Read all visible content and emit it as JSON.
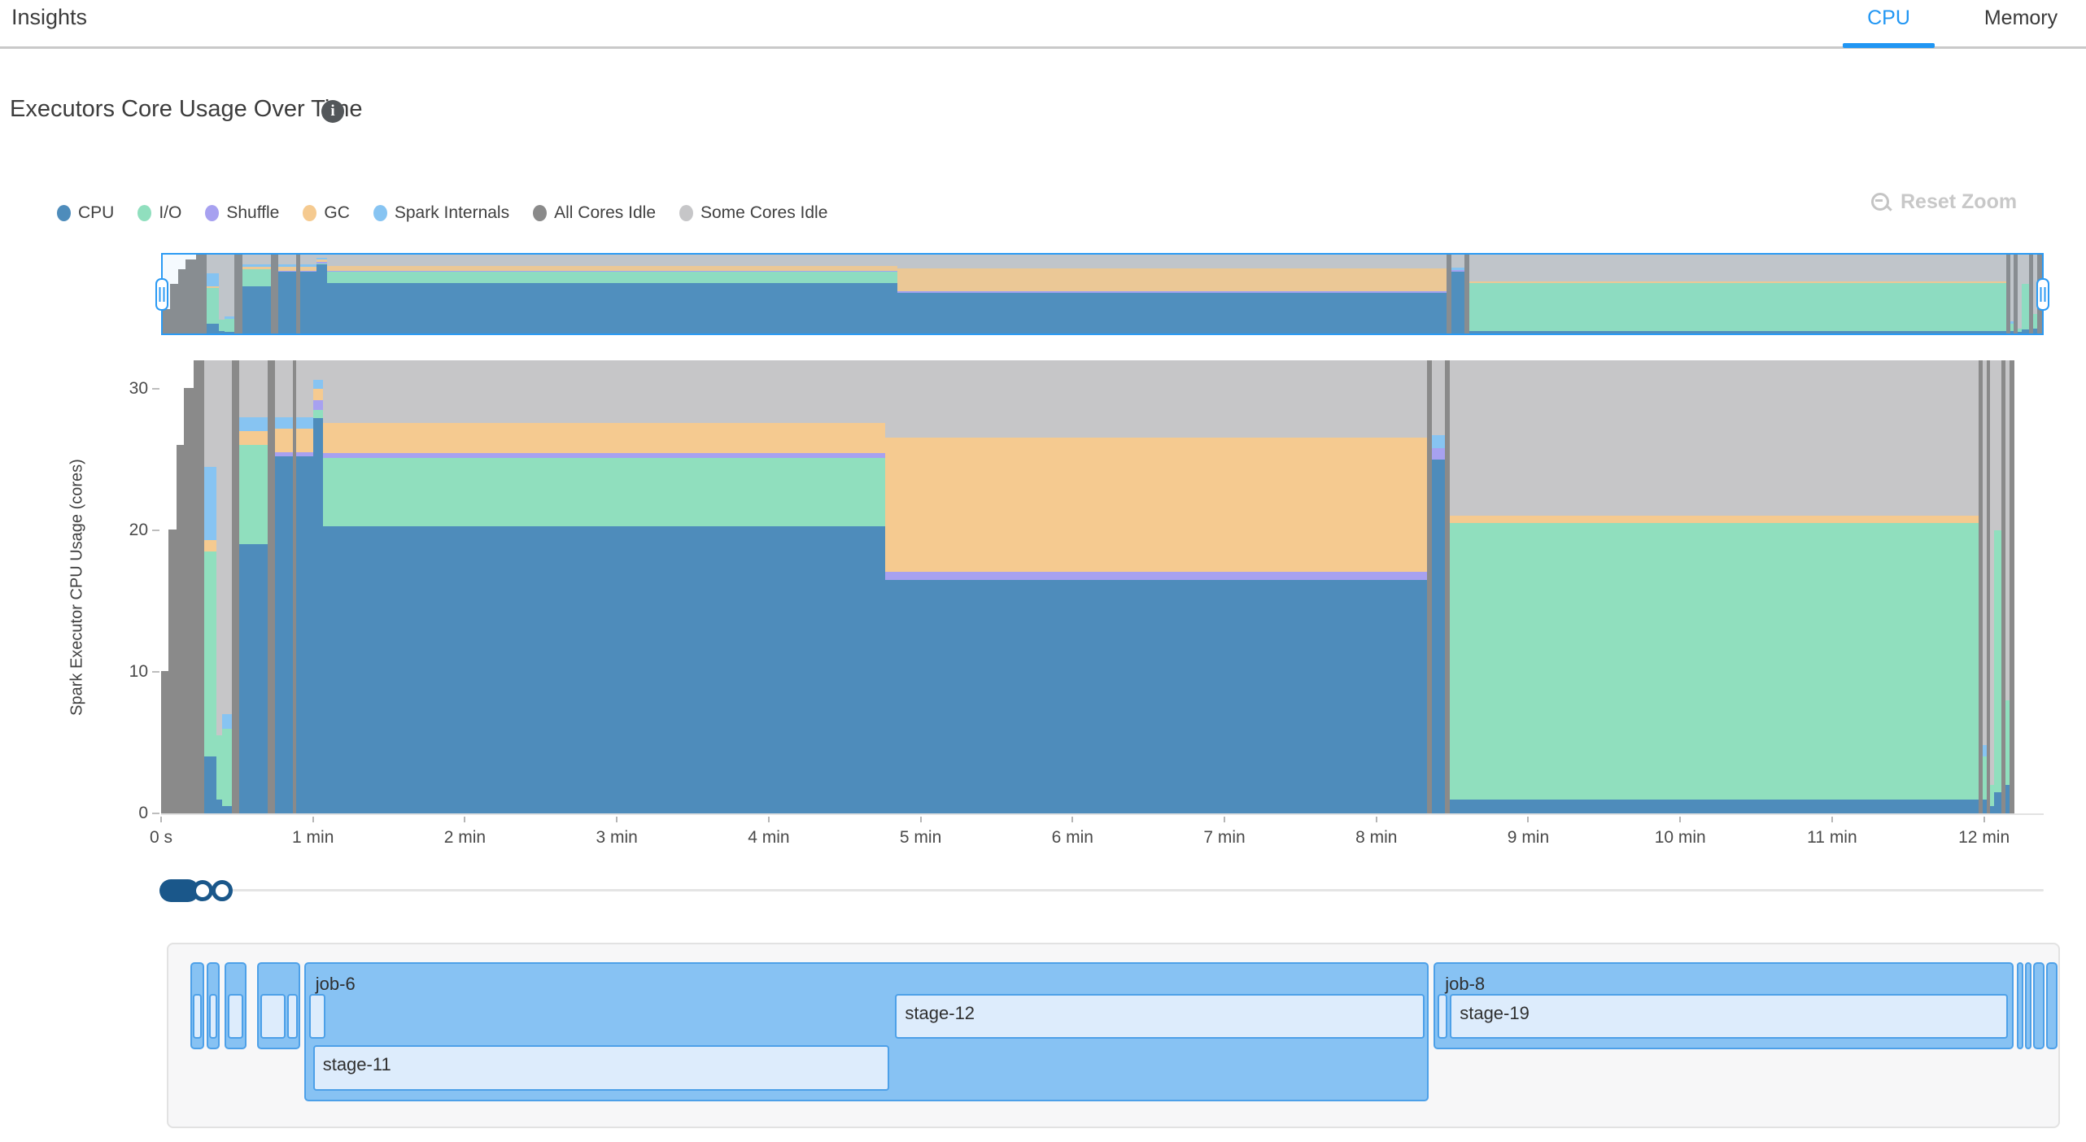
{
  "header": {
    "title": "Insights",
    "tabs": [
      {
        "label": "CPU",
        "active": true
      },
      {
        "label": "Memory",
        "active": false
      }
    ]
  },
  "section": {
    "title": "Executors Core Usage Over Time",
    "info_icon_glyph": "i"
  },
  "toolbar": {
    "reset_zoom_label": "Reset Zoom"
  },
  "ui": {
    "accent_blue": "#2196f3",
    "tab_inactive": "#3a3a3a",
    "divider": "#c9c9c9",
    "reset_zoom_gray": "#c8c8c8",
    "info_icon_bg": "#53575a",
    "slider_blue": "#1a578a",
    "job_fill": "#87c2f3",
    "job_border": "#4da0e8",
    "stage_fill": "#ddecfc",
    "panel_bg": "#f7f7f8",
    "axis_text": "#4a4a4a"
  },
  "chart_data": {
    "type": "area",
    "stacked": true,
    "title": "Executors Core Usage Over Time",
    "xlabel": "",
    "ylabel": "Spark Executor CPU Usage (cores)",
    "ylim": [
      0,
      32
    ],
    "yticks": [
      0,
      10,
      20,
      30
    ],
    "x_total_seconds": 732,
    "grid": false,
    "legend_position": "top-left",
    "xticks": [
      {
        "t": 0,
        "label": "0 s"
      },
      {
        "t": 60,
        "label": "1 min"
      },
      {
        "t": 120,
        "label": "2 min"
      },
      {
        "t": 180,
        "label": "3 min"
      },
      {
        "t": 240,
        "label": "4 min"
      },
      {
        "t": 300,
        "label": "5 min"
      },
      {
        "t": 360,
        "label": "6 min"
      },
      {
        "t": 420,
        "label": "7 min"
      },
      {
        "t": 480,
        "label": "8 min"
      },
      {
        "t": 540,
        "label": "9 min"
      },
      {
        "t": 600,
        "label": "10 min"
      },
      {
        "t": 660,
        "label": "11 min"
      },
      {
        "t": 720,
        "label": "12 min"
      }
    ],
    "series": [
      {
        "key": "cpu",
        "label": "CPU",
        "color": "#4e8cbb"
      },
      {
        "key": "io",
        "label": "I/O",
        "color": "#90dfbe"
      },
      {
        "key": "shuffle",
        "label": "Shuffle",
        "color": "#a7a1f0"
      },
      {
        "key": "gc",
        "label": "GC",
        "color": "#f5ca90"
      },
      {
        "key": "internals",
        "label": "Spark Internals",
        "color": "#87c4f2"
      },
      {
        "key": "all_idle",
        "label": "All Cores Idle",
        "color": "#8a8a8a"
      },
      {
        "key": "some_idle",
        "label": "Some Cores Idle",
        "color": "#c6c6c8"
      }
    ],
    "slices": [
      [
        0,
        3,
        [
          0,
          0,
          0,
          0,
          0,
          10,
          0
        ]
      ],
      [
        3,
        6,
        [
          0,
          0,
          0,
          0,
          0,
          20,
          0
        ]
      ],
      [
        6,
        9,
        [
          0,
          0,
          0,
          0,
          0,
          26,
          0
        ]
      ],
      [
        9,
        13,
        [
          0,
          0,
          0,
          0,
          0,
          30,
          0
        ]
      ],
      [
        13,
        17,
        [
          0,
          0,
          0,
          0,
          0,
          32,
          0
        ]
      ],
      [
        17,
        22,
        [
          4,
          14.5,
          0,
          0.8,
          5.2,
          0,
          7.5
        ]
      ],
      [
        22,
        24,
        [
          1,
          4.5,
          0,
          0,
          0,
          0,
          26.5
        ]
      ],
      [
        24,
        28,
        [
          0.5,
          5.5,
          0,
          0,
          1,
          0,
          25
        ]
      ],
      [
        28,
        31,
        [
          0,
          0,
          0,
          0,
          0,
          32,
          0
        ]
      ],
      [
        31,
        42,
        [
          19,
          7,
          0,
          1,
          1,
          0,
          4
        ]
      ],
      [
        42,
        45,
        [
          0,
          0,
          0,
          0,
          0,
          32,
          0
        ]
      ],
      [
        45,
        52,
        [
          25.2,
          0,
          0.3,
          1.7,
          0.8,
          0,
          4
        ]
      ],
      [
        52,
        53.5,
        [
          0,
          0,
          0,
          0,
          0,
          32,
          0
        ]
      ],
      [
        53.5,
        60,
        [
          25.2,
          0,
          0.3,
          1.7,
          0.8,
          0,
          4
        ]
      ],
      [
        60,
        64,
        [
          27.9,
          0.6,
          0.7,
          0.8,
          0.6,
          0,
          1.4
        ]
      ],
      [
        64,
        286,
        [
          20.3,
          4.8,
          0.35,
          2.1,
          0,
          0,
          4.45
        ]
      ],
      [
        286,
        500,
        [
          16.5,
          0,
          0.55,
          9.5,
          0,
          0,
          5.45
        ]
      ],
      [
        500,
        502,
        [
          0,
          0,
          0,
          0,
          0,
          32,
          0
        ]
      ],
      [
        502,
        507,
        [
          25,
          0,
          0.8,
          0,
          0.9,
          0,
          5.3
        ]
      ],
      [
        507,
        509,
        [
          0,
          0,
          0,
          0,
          0,
          32,
          0
        ]
      ],
      [
        509,
        718,
        [
          1,
          19.5,
          0,
          0.55,
          0,
          0,
          10.95
        ]
      ],
      [
        718,
        719.5,
        [
          0,
          0,
          0,
          0,
          0,
          32,
          0
        ]
      ],
      [
        719.5,
        721,
        [
          1,
          3,
          0,
          0,
          0.8,
          0,
          27.2
        ]
      ],
      [
        721,
        722.5,
        [
          0,
          0,
          0,
          0,
          0,
          32,
          0
        ]
      ],
      [
        722.5,
        724,
        [
          0.5,
          1.5,
          0,
          0,
          0,
          0,
          30
        ]
      ],
      [
        724,
        727,
        [
          1.5,
          18.5,
          0,
          0,
          0,
          0,
          12
        ]
      ],
      [
        727,
        728.5,
        [
          0,
          0,
          0,
          0,
          0,
          32,
          0
        ]
      ],
      [
        728.5,
        730,
        [
          2,
          6,
          0,
          0,
          0,
          0,
          24
        ]
      ],
      [
        730,
        732,
        [
          0,
          0,
          0,
          0,
          0,
          32,
          0
        ]
      ]
    ]
  },
  "timeline": {
    "jobs": [
      {
        "label": "",
        "left_pct": 1.16,
        "width_pct": 0.73,
        "tall": false,
        "stages": [
          {
            "label": "",
            "left_pct": 1.29,
            "width_pct": 0.47,
            "row": 1
          }
        ]
      },
      {
        "label": "",
        "left_pct": 2.02,
        "width_pct": 0.69,
        "tall": false,
        "stages": [
          {
            "label": "",
            "left_pct": 2.15,
            "width_pct": 0.43,
            "row": 1
          }
        ]
      },
      {
        "label": "",
        "left_pct": 2.97,
        "width_pct": 1.16,
        "tall": false,
        "stages": [
          {
            "label": "",
            "left_pct": 3.14,
            "width_pct": 0.82,
            "row": 1
          }
        ]
      },
      {
        "label": "",
        "left_pct": 4.68,
        "width_pct": 2.28,
        "tall": false,
        "stages": [
          {
            "label": "",
            "left_pct": 4.86,
            "width_pct": 1.33,
            "row": 1
          },
          {
            "label": "",
            "left_pct": 6.27,
            "width_pct": 0.56,
            "row": 1
          }
        ]
      },
      {
        "label": "job-6",
        "left_pct": 7.18,
        "width_pct": 59.52,
        "tall": true,
        "stages": [
          {
            "label": "",
            "left_pct": 7.43,
            "width_pct": 0.86,
            "row": 1
          },
          {
            "label": "stage-12",
            "left_pct": 38.46,
            "width_pct": 28.02,
            "row": 1
          },
          {
            "label": "stage-11",
            "left_pct": 7.65,
            "width_pct": 30.47,
            "row": 2
          }
        ]
      },
      {
        "label": "job-8",
        "left_pct": 66.95,
        "width_pct": 30.68,
        "tall": false,
        "stages": [
          {
            "label": "",
            "left_pct": 67.17,
            "width_pct": 0.52,
            "row": 1
          },
          {
            "label": "stage-19",
            "left_pct": 67.81,
            "width_pct": 29.52,
            "row": 1
          }
        ]
      },
      {
        "label": "",
        "left_pct": 97.81,
        "width_pct": 0.34,
        "tall": false,
        "stages": []
      },
      {
        "label": "",
        "left_pct": 98.24,
        "width_pct": 0.34,
        "tall": false,
        "stages": []
      },
      {
        "label": "",
        "left_pct": 98.67,
        "width_pct": 0.6,
        "tall": false,
        "stages": []
      },
      {
        "label": "",
        "left_pct": 99.36,
        "width_pct": 0.6,
        "tall": false,
        "stages": []
      }
    ]
  }
}
